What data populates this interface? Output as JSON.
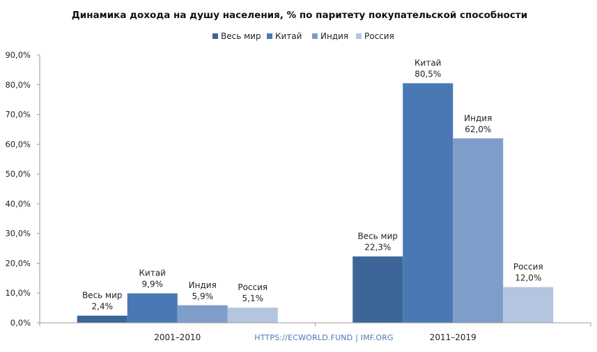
{
  "chart_data": {
    "type": "bar",
    "title": "Динамика дохода на душу населения, % по паритету покупательской способности",
    "categories": [
      "2001–2010",
      "2011–2019"
    ],
    "series": [
      {
        "name": "Весь мир",
        "color": "#3c6698",
        "values": [
          2.4,
          22.3
        ],
        "labels": [
          "2,4%",
          "22,3%"
        ]
      },
      {
        "name": "Китай",
        "color": "#4a78b4",
        "values": [
          9.9,
          80.5
        ],
        "labels": [
          "9,9%",
          "80,5%"
        ]
      },
      {
        "name": "Индия",
        "color": "#7e9ec9",
        "values": [
          5.9,
          62.0
        ],
        "labels": [
          "5,9%",
          "62,0%"
        ]
      },
      {
        "name": "Россия",
        "color": "#b4c5df",
        "values": [
          5.1,
          12.0
        ],
        "labels": [
          "5,1%",
          "12,0%"
        ]
      }
    ],
    "ylim": [
      0,
      90
    ],
    "yticks": [
      {
        "value": 0,
        "label": "0,0%"
      },
      {
        "value": 10,
        "label": "10,0%"
      },
      {
        "value": 20,
        "label": "20,0%"
      },
      {
        "value": 30,
        "label": "30,0%"
      },
      {
        "value": 40,
        "label": "40,0%"
      },
      {
        "value": 50,
        "label": "50,0%"
      },
      {
        "value": 60,
        "label": "60,0%"
      },
      {
        "value": 70,
        "label": "70,0%"
      },
      {
        "value": 80,
        "label": "80,0%"
      },
      {
        "value": 90,
        "label": "90,0%"
      }
    ],
    "legend_position": "top",
    "grid": false,
    "source_note": "HTTPS://ECWORLD.FUND | IMF.ORG"
  }
}
